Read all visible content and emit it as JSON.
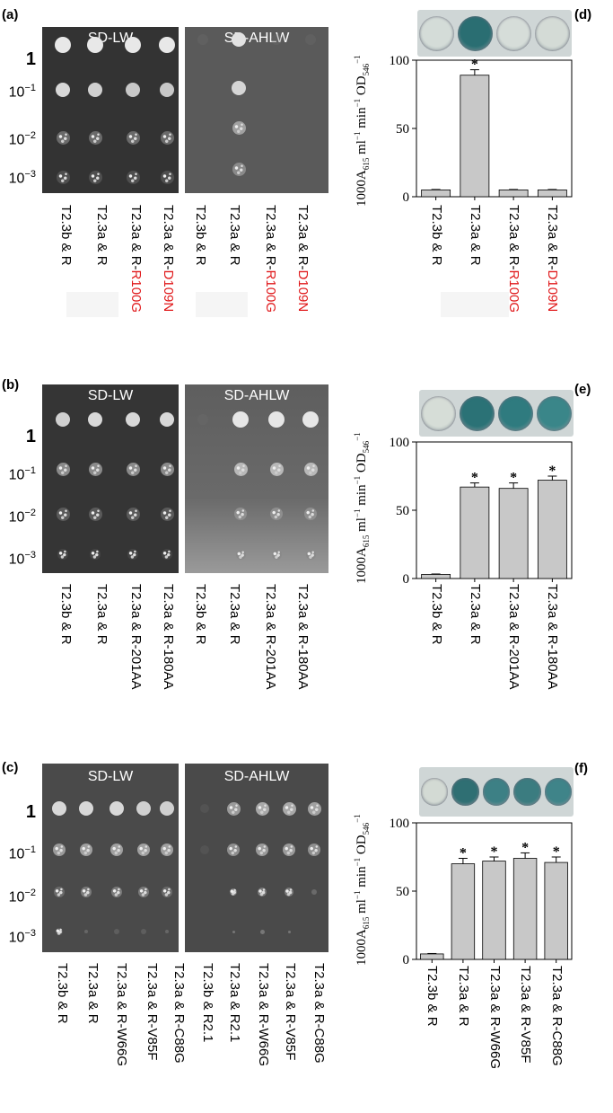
{
  "panels": {
    "a": {
      "letter": "(a)",
      "left_title": "SD-LW",
      "right_title": "SD-AHLW",
      "dilutions": [
        "1",
        "10",
        "10",
        "10"
      ],
      "exponents": [
        "",
        "−1",
        "−2",
        "−3"
      ],
      "labels": [
        [
          "T2.3b & R",
          ""
        ],
        [
          "T2.3a & R",
          ""
        ],
        [
          "T2.3a & R-",
          "R100G"
        ],
        [
          "T2.3a & R-",
          "D109N"
        ]
      ],
      "labels_right": [
        [
          "T2.3b & R",
          ""
        ],
        [
          "T2.3a & R",
          ""
        ],
        [
          "T2.3a & R-",
          "R100G"
        ],
        [
          "T2.3a & R-",
          "D109N"
        ]
      ]
    },
    "b": {
      "letter": "(b)",
      "left_title": "SD-LW",
      "right_title": "SD-AHLW",
      "labels": [
        "T2.3b & R",
        "T2.3a & R",
        "T2.3a & R-201AA",
        "T2.3a & R-180AA"
      ],
      "labels_right": [
        "T2.3b & R",
        "T2.3a & R",
        "T2.3a & R-201AA",
        "T2.3a & R-180AA"
      ]
    },
    "c": {
      "letter": "(c)",
      "left_title": "SD-LW",
      "right_title": "SD-AHLW",
      "labels": [
        "T2.3b & R",
        "T2.3a & R",
        "T2.3a & R-W66G",
        "T2.3a & R-V85F",
        "T2.3a & R-C88G"
      ],
      "labels_right": [
        "T2.3b & R2.1",
        "T2.3a & R2.1",
        "T2.3a & R-W66G",
        "T2.3a & R-V85F",
        "T2.3a & R-C88G"
      ]
    },
    "d": {
      "letter": "(d)"
    },
    "e": {
      "letter": "(e)"
    },
    "f": {
      "letter": "(f)"
    }
  },
  "ylabel": {
    "main": "1000A",
    "sub1": "615",
    "mid": " ml",
    "sup1": "−1",
    "mid2": " min",
    "sup2": "−1",
    "mid3": " OD",
    "sub2": "546",
    "sup3": "−1"
  },
  "chart_data": [
    {
      "type": "bar",
      "panel": "d",
      "categories": [
        "T2.3b & R",
        "T2.3a & R",
        "T2.3a & R-R100G",
        "T2.3a & R-D109N"
      ],
      "values": [
        5,
        89,
        5,
        5
      ],
      "errors": [
        0.3,
        4,
        0.3,
        0.3
      ],
      "significant": [
        false,
        true,
        false,
        false
      ],
      "ylim": [
        0,
        100
      ],
      "yticks": [
        0,
        50,
        100
      ],
      "star": "*",
      "bar_color": "#c8c8c8",
      "well_colors": [
        "#d4dcd8",
        "#2a6e72",
        "#d6ddd9",
        "#d4dbd6"
      ]
    },
    {
      "type": "bar",
      "panel": "e",
      "categories": [
        "T2.3b & R",
        "T2.3a & R",
        "T2.3a & R-201AA",
        "T2.3a & R-180AA"
      ],
      "values": [
        3,
        67,
        66,
        72
      ],
      "errors": [
        0.3,
        3,
        4,
        3
      ],
      "significant": [
        false,
        true,
        true,
        true
      ],
      "ylim": [
        0,
        100
      ],
      "yticks": [
        0,
        50,
        100
      ],
      "star": "*",
      "bar_color": "#c8c8c8",
      "well_colors": [
        "#d6ddd7",
        "#2b7276",
        "#2f7b7f",
        "#3a8689"
      ]
    },
    {
      "type": "bar",
      "panel": "f",
      "categories": [
        "T2.3b & R",
        "T2.3a & R",
        "T2.3a & R-W66G",
        "T2.3a & R-V85F",
        "T2.3a & R-C88G"
      ],
      "values": [
        4,
        70,
        72,
        74,
        71
      ],
      "errors": [
        0.3,
        4,
        3,
        4,
        4
      ],
      "significant": [
        false,
        true,
        true,
        true,
        true
      ],
      "ylim": [
        0,
        100
      ],
      "yticks": [
        0,
        50,
        100
      ],
      "star": "*",
      "bar_color": "#c8c8c8",
      "well_colors": [
        "#d3dad4",
        "#2f6f73",
        "#3d8085",
        "#3b7c80",
        "#3f8489"
      ]
    }
  ]
}
